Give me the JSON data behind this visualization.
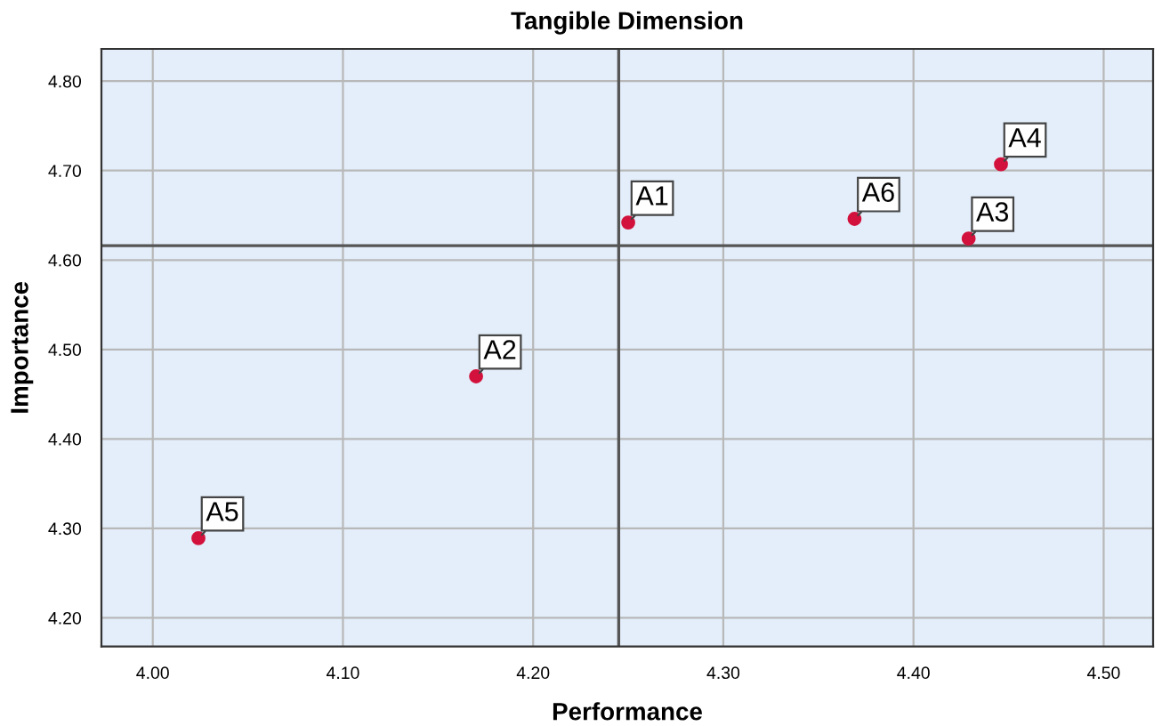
{
  "chart_data": {
    "type": "scatter",
    "title": "Tangible Dimension",
    "xlabel": "Performance",
    "ylabel": "Importance",
    "x": [
      4.25,
      4.17,
      4.429,
      4.446,
      4.024,
      4.369
    ],
    "series": [
      {
        "color": "#d2123c",
        "values": [
          4.642,
          4.47,
          4.624,
          4.707,
          4.289,
          4.646
        ]
      }
    ],
    "marker": "circle",
    "xlim": [
      3.973,
      4.526
    ],
    "xticks": [
      {
        "value": 4.0,
        "label": "4.00"
      },
      {
        "value": 4.1,
        "label": "4.10"
      },
      {
        "value": 4.2,
        "label": "4.20"
      },
      {
        "value": 4.3,
        "label": "4.30"
      },
      {
        "value": 4.4,
        "label": "4.40"
      },
      {
        "value": 4.5,
        "label": "4.50"
      }
    ],
    "ylim": [
      4.168,
      4.836
    ],
    "yticks": [
      {
        "value": 4.2,
        "label": "4.20"
      },
      {
        "value": 4.3,
        "label": "4.30"
      },
      {
        "value": 4.4,
        "label": "4.40"
      },
      {
        "value": 4.5,
        "label": "4.50"
      },
      {
        "value": 4.6,
        "label": "4.60"
      },
      {
        "value": 4.7,
        "label": "4.70"
      },
      {
        "value": 4.8,
        "label": "4.80"
      }
    ],
    "grid": true,
    "ref_lines": [
      {
        "axis": "x",
        "value": 4.245,
        "color": "#555555"
      },
      {
        "axis": "y",
        "value": 4.616,
        "color": "#555555"
      }
    ],
    "annotations": [
      {
        "text": "A1",
        "x": 4.25,
        "y": 4.642
      },
      {
        "text": "A2",
        "x": 4.17,
        "y": 4.47
      },
      {
        "text": "A3",
        "x": 4.429,
        "y": 4.624
      },
      {
        "text": "A4",
        "x": 4.446,
        "y": 4.707
      },
      {
        "text": "A5",
        "x": 4.024,
        "y": 4.289
      },
      {
        "text": "A6",
        "x": 4.369,
        "y": 4.646
      }
    ]
  }
}
